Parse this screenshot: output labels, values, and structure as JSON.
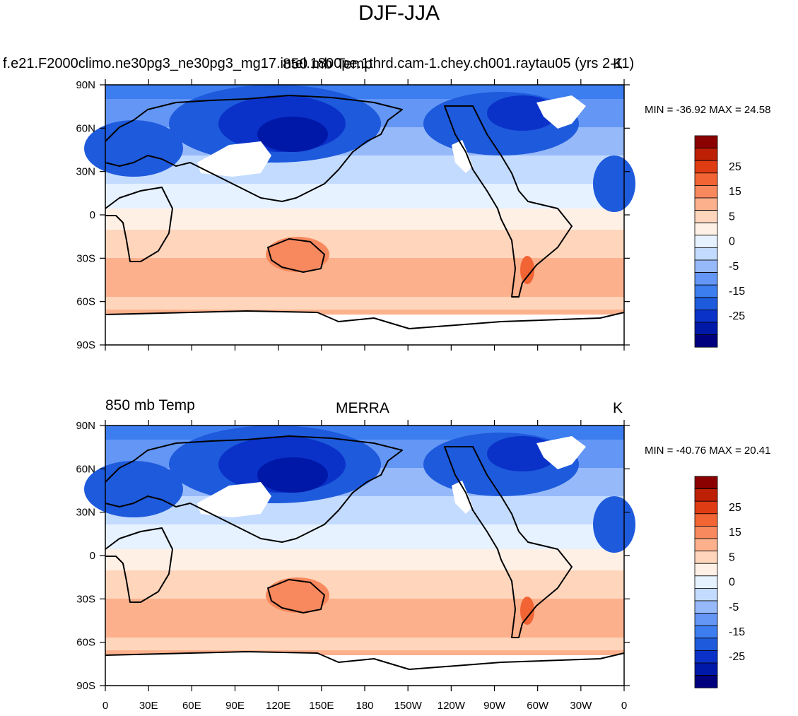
{
  "page_title": "DJF-JJA",
  "lat_labels": [
    "90N",
    "60N",
    "30N",
    "0",
    "30S",
    "60S",
    "90S"
  ],
  "lon_labels": [
    "0",
    "30E",
    "60E",
    "90E",
    "120E",
    "150E",
    "180",
    "150W",
    "120W",
    "90W",
    "60W",
    "30W",
    "0"
  ],
  "colorbar": {
    "colors": [
      "#00007f",
      "#0018a8",
      "#0a32c8",
      "#1e5adc",
      "#3c7df0",
      "#6496f5",
      "#96b9fa",
      "#c3dbff",
      "#e6f2ff",
      "#fff0e6",
      "#ffd6bc",
      "#fcb08c",
      "#f8895e",
      "#f26434",
      "#e03c14",
      "#bd2004",
      "#8b0000"
    ],
    "labels": [
      "25",
      "15",
      "5",
      "0",
      "-5",
      "-15",
      "-25"
    ]
  },
  "panels": [
    {
      "left_title": "f.e21.F2000climo.ne30pg3_ne30pg3_mg17.intel.1800pe.1thrd.cam-1.chey.ch001.raytau05 (yrs 2-11)",
      "center_title": "850 mb Temp",
      "right_title": "K",
      "min_max": "MIN = -36.92 MAX =  24.58"
    },
    {
      "left_title": "850 mb Temp",
      "center_title": "MERRA",
      "right_title": "K",
      "min_max": "MIN = -40.76 MAX =  20.41"
    }
  ]
}
